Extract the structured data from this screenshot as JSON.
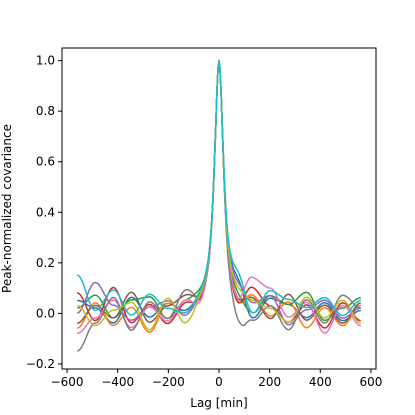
{
  "chart_data": {
    "type": "line",
    "title": "",
    "xlabel": "Lag [min]",
    "ylabel": "Peak-normalized covariance",
    "xlim": [
      -620,
      620
    ],
    "ylim": [
      -0.22,
      1.05
    ],
    "xticks": [
      -600,
      -400,
      -200,
      0,
      200,
      400,
      600
    ],
    "xtick_labels": [
      "−600",
      "−400",
      "−200",
      "0",
      "200",
      "400",
      "600"
    ],
    "yticks": [
      -0.2,
      0.0,
      0.2,
      0.4,
      0.6,
      0.8,
      1.0
    ],
    "ytick_labels": [
      "−0.2",
      "0.0",
      "0.2",
      "0.4",
      "0.6",
      "0.8",
      "1.0"
    ],
    "grid": false,
    "legend": "none",
    "x_range": [
      -560,
      560
    ],
    "peak": {
      "x": 0,
      "y": 1.0
    },
    "series": [
      {
        "color": "#1f77b4",
        "left": [
          0.05,
          0.02,
          -0.04,
          0.06,
          -0.02,
          0.03,
          -0.01,
          0.02
        ],
        "right": [
          0.01,
          -0.03,
          0.04,
          -0.02,
          0.03,
          0.05,
          -0.04,
          0.11
        ]
      },
      {
        "color": "#ff7f0e",
        "left": [
          -0.06,
          0.04,
          -0.05,
          0.02,
          -0.08,
          0.03,
          -0.02,
          0.03
        ],
        "right": [
          0.03,
          -0.05,
          0.02,
          -0.06,
          0.04,
          -0.02,
          0.05,
          -0.04
        ]
      },
      {
        "color": "#2ca02c",
        "left": [
          0.02,
          0.07,
          -0.02,
          0.05,
          0.06,
          -0.03,
          0.03,
          0.04
        ],
        "right": [
          0.06,
          0.02,
          -0.03,
          0.08,
          0.03,
          0.06,
          -0.02,
          0.02
        ]
      },
      {
        "color": "#d62728",
        "left": [
          0.08,
          -0.03,
          0.1,
          -0.04,
          0.03,
          -0.05,
          0.02,
          -0.02
        ],
        "right": [
          -0.03,
          0.04,
          -0.06,
          0.03,
          -0.04,
          0.02,
          0.08,
          -0.05
        ]
      },
      {
        "color": "#9467bd",
        "left": [
          0.0,
          0.12,
          0.03,
          -0.03,
          0.02,
          0.04,
          -0.03,
          0.02
        ],
        "right": [
          0.02,
          -0.02,
          0.05,
          0.01,
          -0.05,
          0.06,
          0.02,
          0.08
        ]
      },
      {
        "color": "#8c564b",
        "left": [
          -0.04,
          0.03,
          -0.02,
          0.08,
          -0.04,
          0.02,
          0.05,
          0.0
        ],
        "right": [
          0.04,
          -0.04,
          0.03,
          -0.03,
          0.07,
          -0.03,
          0.04,
          -0.02
        ]
      },
      {
        "color": "#e377c2",
        "left": [
          -0.08,
          -0.02,
          0.05,
          -0.06,
          0.02,
          -0.04,
          0.03,
          -0.04
        ],
        "right": [
          -0.05,
          0.03,
          -0.08,
          0.04,
          -0.02,
          0.09,
          0.12,
          -0.03
        ]
      },
      {
        "color": "#7f7f7f",
        "left": [
          -0.15,
          -0.04,
          0.06,
          -0.07,
          0.04,
          -0.03,
          0.07,
          -0.01
        ],
        "right": [
          0.02,
          0.07,
          -0.04,
          0.05,
          -0.07,
          0.02,
          -0.05,
          -0.14
        ]
      },
      {
        "color": "#bcbd22",
        "left": [
          0.03,
          -0.05,
          0.01,
          0.04,
          -0.07,
          0.05,
          -0.06,
          0.01
        ],
        "right": [
          -0.04,
          0.05,
          -0.02,
          0.06,
          -0.04,
          0.01,
          0.03,
          0.05
        ]
      },
      {
        "color": "#17becf",
        "left": [
          0.15,
          0.01,
          0.09,
          -0.01,
          0.07,
          0.01,
          -0.02,
          0.03
        ],
        "right": [
          0.05,
          -0.01,
          0.06,
          0.02,
          0.05,
          0.08,
          -0.02,
          0.15
        ]
      }
    ]
  }
}
